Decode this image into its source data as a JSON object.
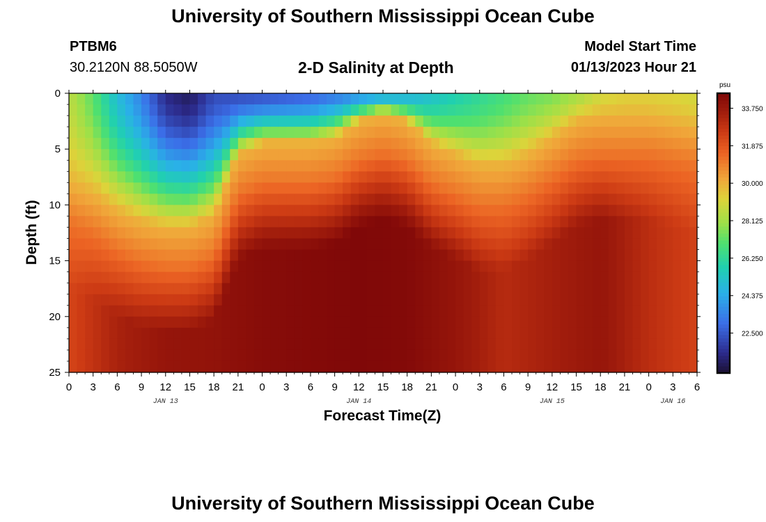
{
  "page": {
    "title": "University of Southern Mississippi Ocean Cube",
    "footer_title": "University of Southern Mississippi Ocean Cube",
    "station_id": "PTBM6",
    "station_coords": "30.2120N  88.5050W",
    "plot_title": "2-D Salinity at Depth",
    "model_start_label": "Model Start Time",
    "model_start_value": "01/13/2023 Hour 21"
  },
  "chart_data": {
    "type": "heatmap",
    "title": "2-D Salinity at Depth",
    "xlabel": "Forecast Time(Z)",
    "ylabel": "Depth (ft)",
    "x_range_hours": [
      0,
      78
    ],
    "x_ticks": [
      {
        "h": 0,
        "label": "0"
      },
      {
        "h": 3,
        "label": "3"
      },
      {
        "h": 6,
        "label": "6"
      },
      {
        "h": 9,
        "label": "9"
      },
      {
        "h": 12,
        "label": "12"
      },
      {
        "h": 15,
        "label": "15"
      },
      {
        "h": 18,
        "label": "18"
      },
      {
        "h": 21,
        "label": "21"
      },
      {
        "h": 24,
        "label": "0"
      },
      {
        "h": 27,
        "label": "3"
      },
      {
        "h": 30,
        "label": "6"
      },
      {
        "h": 33,
        "label": "9"
      },
      {
        "h": 36,
        "label": "12"
      },
      {
        "h": 39,
        "label": "15"
      },
      {
        "h": 42,
        "label": "18"
      },
      {
        "h": 45,
        "label": "21"
      },
      {
        "h": 48,
        "label": "0"
      },
      {
        "h": 51,
        "label": "3"
      },
      {
        "h": 54,
        "label": "6"
      },
      {
        "h": 57,
        "label": "9"
      },
      {
        "h": 60,
        "label": "12"
      },
      {
        "h": 63,
        "label": "15"
      },
      {
        "h": 66,
        "label": "18"
      },
      {
        "h": 69,
        "label": "21"
      },
      {
        "h": 72,
        "label": "0"
      },
      {
        "h": 75,
        "label": "3"
      },
      {
        "h": 78,
        "label": "6"
      }
    ],
    "day_labels": [
      {
        "h": 12,
        "label": "JAN 13"
      },
      {
        "h": 36,
        "label": "JAN 14"
      },
      {
        "h": 60,
        "label": "JAN 15"
      },
      {
        "h": 75,
        "label": "JAN 16"
      }
    ],
    "y_range_ft": [
      0,
      25
    ],
    "y_ticks": [
      0,
      5,
      10,
      15,
      20,
      25
    ],
    "colorbar": {
      "unit": "psu",
      "min": 20.5,
      "max": 34.5,
      "tick_values": [
        33.75,
        31.875,
        30.0,
        28.125,
        26.25,
        24.375,
        22.5
      ],
      "tick_labels": [
        "33.750",
        "31.875",
        "30.000",
        "28.125",
        "26.250",
        "24.375",
        "22.500"
      ]
    },
    "colormap": [
      [
        20.5,
        "#1a1030"
      ],
      [
        21.5,
        "#2c2a8a"
      ],
      [
        23.0,
        "#3b6ee8"
      ],
      [
        24.5,
        "#2ab0e8"
      ],
      [
        25.8,
        "#20d0b0"
      ],
      [
        27.0,
        "#4ee070"
      ],
      [
        28.0,
        "#9ee048"
      ],
      [
        29.2,
        "#dcd43a"
      ],
      [
        30.2,
        "#f0a83a"
      ],
      [
        31.5,
        "#ec6424"
      ],
      [
        32.6,
        "#cc3a14"
      ],
      [
        33.6,
        "#a01c0c"
      ],
      [
        34.5,
        "#800808"
      ]
    ],
    "model": {
      "bottom_salinity": 34.3,
      "fresh_layer": [
        {
          "h": 0,
          "surface": 28.6,
          "thickness_ft": 8.0
        },
        {
          "h": 3,
          "surface": 27.2,
          "thickness_ft": 9.0
        },
        {
          "h": 6,
          "surface": 25.0,
          "thickness_ft": 10.5
        },
        {
          "h": 9,
          "surface": 23.5,
          "thickness_ft": 11.5
        },
        {
          "h": 12,
          "surface": 21.5,
          "thickness_ft": 12.0
        },
        {
          "h": 15,
          "surface": 21.0,
          "thickness_ft": 12.0
        },
        {
          "h": 18,
          "surface": 22.3,
          "thickness_ft": 11.0
        },
        {
          "h": 21,
          "surface": 22.3,
          "thickness_ft": 5.5
        },
        {
          "h": 24,
          "surface": 22.4,
          "thickness_ft": 4.5
        },
        {
          "h": 27,
          "surface": 22.6,
          "thickness_ft": 4.5
        },
        {
          "h": 30,
          "surface": 22.8,
          "thickness_ft": 4.5
        },
        {
          "h": 33,
          "surface": 23.3,
          "thickness_ft": 4.0
        },
        {
          "h": 36,
          "surface": 23.8,
          "thickness_ft": 2.5
        },
        {
          "h": 39,
          "surface": 24.2,
          "thickness_ft": 1.8
        },
        {
          "h": 42,
          "surface": 24.6,
          "thickness_ft": 2.5
        },
        {
          "h": 45,
          "surface": 25.2,
          "thickness_ft": 4.5
        },
        {
          "h": 48,
          "surface": 25.8,
          "thickness_ft": 5.5
        },
        {
          "h": 51,
          "surface": 26.3,
          "thickness_ft": 6.5
        },
        {
          "h": 54,
          "surface": 26.8,
          "thickness_ft": 6.5
        },
        {
          "h": 57,
          "surface": 27.3,
          "thickness_ft": 5.5
        },
        {
          "h": 60,
          "surface": 27.6,
          "thickness_ft": 4.0
        },
        {
          "h": 63,
          "surface": 28.2,
          "thickness_ft": 2.5
        },
        {
          "h": 66,
          "surface": 29.0,
          "thickness_ft": 2.0
        },
        {
          "h": 69,
          "surface": 29.3,
          "thickness_ft": 2.0
        },
        {
          "h": 72,
          "surface": 29.3,
          "thickness_ft": 2.0
        },
        {
          "h": 75,
          "surface": 29.2,
          "thickness_ft": 2.5
        },
        {
          "h": 78,
          "surface": 29.0,
          "thickness_ft": 3.0
        }
      ],
      "deep_salinity": [
        {
          "h": 0,
          "s": 32.3
        },
        {
          "h": 6,
          "s": 33.4
        },
        {
          "h": 12,
          "s": 33.9
        },
        {
          "h": 18,
          "s": 34.0
        },
        {
          "h": 24,
          "s": 34.3
        },
        {
          "h": 30,
          "s": 34.4
        },
        {
          "h": 36,
          "s": 34.5
        },
        {
          "h": 42,
          "s": 34.4
        },
        {
          "h": 48,
          "s": 33.9
        },
        {
          "h": 54,
          "s": 33.1
        },
        {
          "h": 60,
          "s": 33.5
        },
        {
          "h": 66,
          "s": 33.9
        },
        {
          "h": 72,
          "s": 33.0
        },
        {
          "h": 78,
          "s": 32.4
        }
      ]
    }
  }
}
